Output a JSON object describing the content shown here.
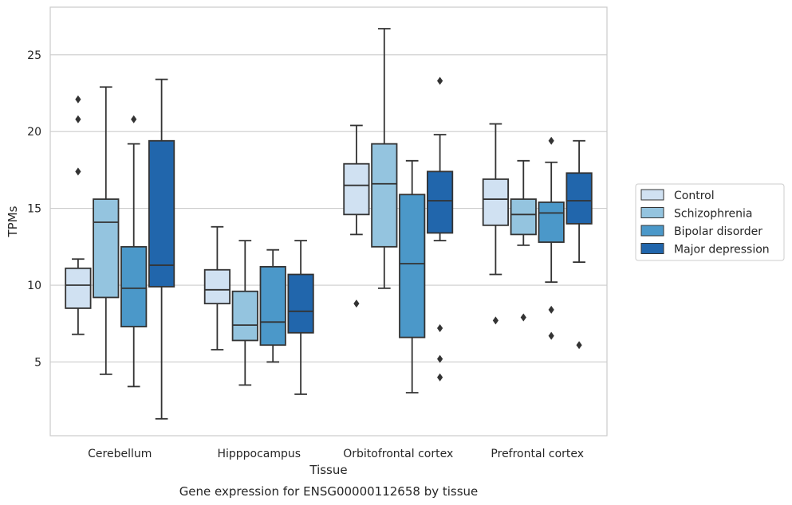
{
  "caption": "Gene expression for ENSG00000112658 by tissue",
  "chart_data": {
    "type": "box",
    "xlabel": "Tissue",
    "ylabel": "TPMs",
    "ylim": [
      0.2,
      28.1
    ],
    "yticks": [
      5,
      10,
      15,
      20,
      25
    ],
    "grid": "horizontal",
    "legend_position": "right",
    "categories": [
      "Cerebellum",
      "Hipppocampus",
      "Orbitofrontal cortex",
      "Prefrontal cortex"
    ],
    "series": [
      {
        "name": "Control",
        "color": "#d0e1f2",
        "boxes": [
          {
            "whisker_low": 6.8,
            "q1": 8.5,
            "median": 10.0,
            "q3": 11.1,
            "whisker_high": 11.7,
            "outliers": [
              17.4,
              20.8,
              22.1
            ]
          },
          {
            "whisker_low": 5.8,
            "q1": 8.8,
            "median": 9.7,
            "q3": 11.0,
            "whisker_high": 13.8,
            "outliers": []
          },
          {
            "whisker_low": 13.3,
            "q1": 14.6,
            "median": 16.5,
            "q3": 17.9,
            "whisker_high": 20.4,
            "outliers": [
              8.8
            ]
          },
          {
            "whisker_low": 10.7,
            "q1": 13.9,
            "median": 15.6,
            "q3": 16.9,
            "whisker_high": 20.5,
            "outliers": [
              7.7
            ]
          }
        ]
      },
      {
        "name": "Schizophrenia",
        "color": "#94c4df",
        "boxes": [
          {
            "whisker_low": 4.2,
            "q1": 9.2,
            "median": 14.1,
            "q3": 15.6,
            "whisker_high": 22.9,
            "outliers": []
          },
          {
            "whisker_low": 3.5,
            "q1": 6.4,
            "median": 7.4,
            "q3": 9.6,
            "whisker_high": 12.9,
            "outliers": []
          },
          {
            "whisker_low": 9.8,
            "q1": 12.5,
            "median": 16.6,
            "q3": 19.2,
            "whisker_high": 26.7,
            "outliers": []
          },
          {
            "whisker_low": 12.6,
            "q1": 13.3,
            "median": 14.6,
            "q3": 15.6,
            "whisker_high": 18.1,
            "outliers": [
              7.9
            ]
          }
        ]
      },
      {
        "name": "Bipolar disorder",
        "color": "#4b98c9",
        "boxes": [
          {
            "whisker_low": 3.4,
            "q1": 7.3,
            "median": 9.8,
            "q3": 12.5,
            "whisker_high": 19.2,
            "outliers": [
              20.8
            ]
          },
          {
            "whisker_low": 5.0,
            "q1": 6.1,
            "median": 7.6,
            "q3": 11.2,
            "whisker_high": 12.3,
            "outliers": []
          },
          {
            "whisker_low": 3.0,
            "q1": 6.6,
            "median": 11.4,
            "q3": 15.9,
            "whisker_high": 18.1,
            "outliers": []
          },
          {
            "whisker_low": 10.2,
            "q1": 12.8,
            "median": 14.7,
            "q3": 15.4,
            "whisker_high": 18.0,
            "outliers": [
              6.7,
              8.4,
              19.4
            ]
          }
        ]
      },
      {
        "name": "Major depression",
        "color": "#2166ac",
        "boxes": [
          {
            "whisker_low": 1.3,
            "q1": 9.9,
            "median": 11.3,
            "q3": 19.4,
            "whisker_high": 23.4,
            "outliers": []
          },
          {
            "whisker_low": 2.9,
            "q1": 6.9,
            "median": 8.3,
            "q3": 10.7,
            "whisker_high": 12.9,
            "outliers": []
          },
          {
            "whisker_low": 12.9,
            "q1": 13.4,
            "median": 15.5,
            "q3": 17.4,
            "whisker_high": 19.8,
            "outliers": [
              4.0,
              5.2,
              7.2,
              23.3
            ]
          },
          {
            "whisker_low": 11.5,
            "q1": 14.0,
            "median": 15.5,
            "q3": 17.3,
            "whisker_high": 19.4,
            "outliers": [
              6.1
            ]
          }
        ]
      }
    ]
  }
}
